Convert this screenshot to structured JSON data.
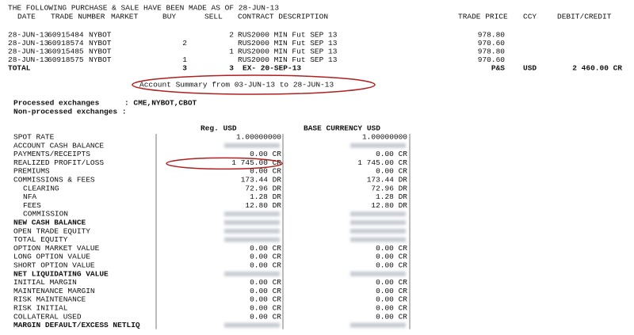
{
  "header": {
    "title": "THE FOLLOWING PURCHASE & SALE HAVE BEEN MADE AS OF 28-JUN-13"
  },
  "trades": {
    "columns": [
      "DATE",
      "TRADE NUMBER",
      "MARKET",
      "BUY",
      "SELL",
      "CONTRACT DESCRIPTION",
      "TRADE PRICE",
      "CCY",
      "DEBIT/CREDIT"
    ],
    "rows": [
      {
        "date": "28-JUN-13",
        "trade_number": "60915484",
        "market": "NYBOT",
        "sell": "2",
        "description": "RUS2000 MIN Fut SEP 13",
        "price": "978.80"
      },
      {
        "date": "28-JUN-13",
        "trade_number": "60918574",
        "market": "NYBOT",
        "buy": "2",
        "description": "RUS2000 MIN Fut SEP 13",
        "price": "970.60"
      },
      {
        "date": "28-JUN-13",
        "trade_number": "60915485",
        "market": "NYBOT",
        "sell": "1",
        "description": "RUS2000 MIN Fut SEP 13",
        "price": "978.80"
      },
      {
        "date": "28-JUN-13",
        "trade_number": "60918575",
        "market": "NYBOT",
        "buy": "1",
        "description": "RUS2000 MIN Fut SEP 13",
        "price": "970.60"
      }
    ],
    "total": {
      "label": "TOTAL",
      "buy": "3",
      "sell": "3",
      "description": "EX- 20-SEP-13",
      "price": "P&S",
      "ccy": "USD",
      "amount": "2 460.00 CR"
    }
  },
  "summary": {
    "title": "Account Summary from 03-JUN-13 to 28-JUN-13",
    "exchanges": [
      {
        "label": "Processed exchanges",
        "value": ": CME,NYBOT,CBOT"
      },
      {
        "label": "Non-processed exchanges :"
      }
    ],
    "columns": [
      "Reg. USD",
      "BASE CURRENCY USD"
    ],
    "rows": [
      {
        "label": "SPOT RATE",
        "reg": "1.00000000",
        "base": "1.00000000"
      },
      {
        "label": "ACCOUNT CASH BALANCE"
      },
      {
        "label": "PAYMENTS/RECEIPTS",
        "reg": "0.00 CR",
        "base": "0.00 CR"
      },
      {
        "label": "REALIZED PROFIT/LOSS",
        "reg": "1 745.00 CR",
        "base": "1 745.00 CR",
        "highlight": true
      },
      {
        "label": "PREMIUMS",
        "reg": "0.00 CR",
        "base": "0.00 CR"
      },
      {
        "label": "COMMISSIONS & FEES",
        "reg": "173.44 DR",
        "base": "173.44 DR"
      },
      {
        "label": "CLEARING",
        "reg": "72.96 DR",
        "base": "72.96 DR",
        "indent": true
      },
      {
        "label": "NFA",
        "reg": "1.28 DR",
        "base": "1.28 DR",
        "indent": true
      },
      {
        "label": "FEES",
        "reg": "12.80 DR",
        "base": "12.80 DR",
        "indent": true
      },
      {
        "label": "COMMISSION",
        "indent": true
      },
      {
        "label": "NEW CASH BALANCE",
        "bold": true
      },
      {
        "label": "OPEN TRADE EQUITY"
      },
      {
        "label": "TOTAL EQUITY"
      },
      {
        "label": "OPTION MARKET VALUE",
        "reg": "0.00 CR",
        "base": "0.00 CR"
      },
      {
        "label": "LONG OPTION VALUE",
        "reg": "0.00 CR",
        "base": "0.00 CR"
      },
      {
        "label": "SHORT OPTION VALUE",
        "reg": "0.00 CR",
        "base": "0.00 CR"
      },
      {
        "label": "NET LIQUIDATING VALUE",
        "bold": true
      },
      {
        "label": "INITIAL MARGIN",
        "reg": "0.00 CR",
        "base": "0.00 CR"
      },
      {
        "label": "MAINTENANCE MARGIN",
        "reg": "0.00 CR",
        "base": "0.00 CR"
      },
      {
        "label": "RISK MAINTENANCE",
        "reg": "0.00 CR",
        "base": "0.00 CR"
      },
      {
        "label": "RISK INITIAL",
        "reg": "0.00 CR",
        "base": "0.00 CR"
      },
      {
        "label": "COLLATERAL USED",
        "reg": "0.00 CR",
        "base": "0.00 CR"
      },
      {
        "label": "MARGIN DEFAULT/EXCESS NETLIQ",
        "bold": true
      }
    ]
  }
}
